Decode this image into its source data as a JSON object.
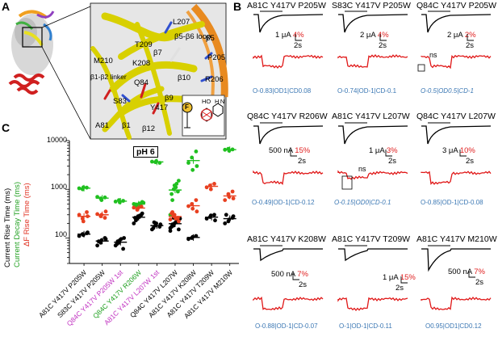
{
  "panels": {
    "a": "A",
    "b": "B",
    "c": "C"
  },
  "structure_labels": [
    {
      "text": "L207"
    },
    {
      "text": "β5-β6 loop"
    },
    {
      "text": "β5"
    },
    {
      "text": "T209"
    },
    {
      "text": "M210"
    },
    {
      "text": "β1-β2 linker"
    },
    {
      "text": "K208"
    },
    {
      "text": "P205"
    },
    {
      "text": "R206"
    },
    {
      "text": "Q84"
    },
    {
      "text": "β10"
    },
    {
      "text": "β9"
    },
    {
      "text": "S83"
    },
    {
      "text": "Y417"
    },
    {
      "text": "A81"
    },
    {
      "text": "β1"
    },
    {
      "text": "β12"
    },
    {
      "text": "β7"
    }
  ],
  "fluor_labels": {
    "f": "F",
    "ho": "HO",
    "nh": "H N"
  },
  "traces": [
    {
      "title": "A81C Y417V P205W",
      "scale_cur": "1 μA",
      "scale_pct": "4%",
      "scale_time": "2s",
      "caption": "O-0.83|OD1|CD0.08",
      "italic": false
    },
    {
      "title": "S83C Y417V P205W",
      "scale_cur": "2 μA",
      "scale_pct": "4%",
      "scale_time": "2s",
      "caption": "O-0.74|OD-1|CD-0.1",
      "italic": false
    },
    {
      "title": "Q84C Y417V P205W",
      "scale_cur": "2 μA",
      "scale_pct": "2%",
      "scale_time": "2s",
      "caption": "O-0.5|OD0.5|CD-1",
      "italic": true,
      "ns": "ns"
    },
    {
      "title": "Q84C Y417V R206W",
      "scale_cur": "500 nA",
      "scale_pct": "15%",
      "scale_time": "2s",
      "caption": "O-0.49|OD-1|CD-0.12",
      "italic": false
    },
    {
      "title": "A81C Y417V L207W",
      "scale_cur": "1 μA",
      "scale_pct": "3%",
      "scale_time": "2s",
      "caption": "O-0.15|OD0|CD-0.1",
      "italic": true,
      "ns": "ns"
    },
    {
      "title": "Q84C Y417V L207W",
      "scale_cur": "3 μA",
      "scale_pct": "10%",
      "scale_time": "2s",
      "caption": "O-0.85|OD-1|CD-0.08",
      "italic": false
    },
    {
      "title": "A81C Y417V K208W",
      "scale_cur": "500 nA",
      "scale_pct": "7%",
      "scale_time": "2s",
      "caption": "O-0.88|OD-1|CD-0.07",
      "italic": false
    },
    {
      "title": "A81C Y417V T209W",
      "scale_cur": "1 μA",
      "scale_pct": "15%",
      "scale_time": "2s",
      "caption": "O-1|OD-1|CD-0.11",
      "italic": false
    },
    {
      "title": "A81C Y417V M210W",
      "scale_cur": "500 nA",
      "scale_pct": "7%",
      "scale_time": "2s",
      "caption": "O0.95|OD1|CD0.12",
      "italic": false
    }
  ],
  "chart_data": {
    "type": "scatter",
    "title": "",
    "ylabel_parts": [
      {
        "text": "Current Rise Time (ms)",
        "color": "#000000"
      },
      {
        "text": "Current Decay Time (ms)",
        "color": "#20a020"
      },
      {
        "text": "ΔF Rise Time (ms)",
        "color": "#e03020"
      }
    ],
    "yscale": "log",
    "ylim": [
      30,
      10000
    ],
    "yticks": [
      "10000",
      "1000",
      "100"
    ],
    "annotation": "pH 6",
    "categories": [
      {
        "label": "A81C Y417V P205W",
        "color": "#000000",
        "rise": [
          110,
          120,
          115,
          125,
          130
        ],
        "decay": [
          1050,
          1000,
          1100,
          1080
        ],
        "df": [
          300,
          250,
          220,
          340,
          280
        ]
      },
      {
        "label": "S83C Y417V P205W",
        "color": "#000000",
        "rise": [
          70,
          80,
          90,
          100,
          95,
          85
        ],
        "decay": [
          700,
          650,
          600,
          680
        ],
        "df": [
          310,
          280,
          300,
          260,
          350
        ]
      },
      {
        "label": "Q84C Y417V P205W 1st",
        "color": "#c030c0",
        "rise": [
          70,
          80,
          90,
          60,
          100,
          75,
          85,
          95
        ],
        "decay": [
          560,
          600,
          540,
          580
        ],
        "df": []
      },
      {
        "label": "Q84C Y417V R206W",
        "color": "#20a020",
        "rise": [
          200,
          250,
          280,
          300,
          320,
          260,
          230,
          270,
          290
        ],
        "decay": [
          500,
          450,
          480,
          520,
          550,
          470,
          490,
          510,
          460,
          530
        ],
        "df": [
          420,
          380,
          410,
          440
        ]
      },
      {
        "label": "A81C Y417V L207W 1st",
        "color": "#c030c0",
        "rise": [
          150,
          180,
          200,
          170,
          190,
          160,
          210
        ],
        "decay": [
          3700,
          3600,
          3800,
          3500
        ],
        "df": []
      },
      {
        "label": "Q84C Y417V L207W",
        "color": "#000000",
        "rise": [
          160,
          180,
          200,
          220,
          150,
          170,
          190,
          210,
          230,
          250,
          140,
          260
        ],
        "decay": [
          300,
          1000,
          1200,
          900,
          1500,
          800,
          600,
          1100,
          1300
        ],
        "df": [
          240,
          280,
          300,
          260,
          220,
          320,
          340,
          250
        ]
      },
      {
        "label": "A81C Y417V K208W",
        "color": "#000000",
        "rise": [
          95,
          100,
          105,
          110
        ],
        "decay": [
          3500,
          4500,
          2500,
          6000,
          3000
        ],
        "df": [
          450,
          500,
          400,
          600,
          350
        ]
      },
      {
        "label": "A81C Y417V T209W",
        "color": "#000000",
        "rise": [
          250,
          270,
          290,
          300,
          230
        ],
        "decay": [],
        "df": [
          1100,
          1200,
          1000,
          1300
        ]
      },
      {
        "label": "A81C Y417V M210W",
        "color": "#000000",
        "rise": [
          200,
          220,
          240,
          260,
          280,
          300
        ],
        "decay": [
          6500,
          6800,
          6200,
          6600
        ],
        "df": [
          600,
          800,
          700,
          900,
          650
        ]
      }
    ]
  }
}
